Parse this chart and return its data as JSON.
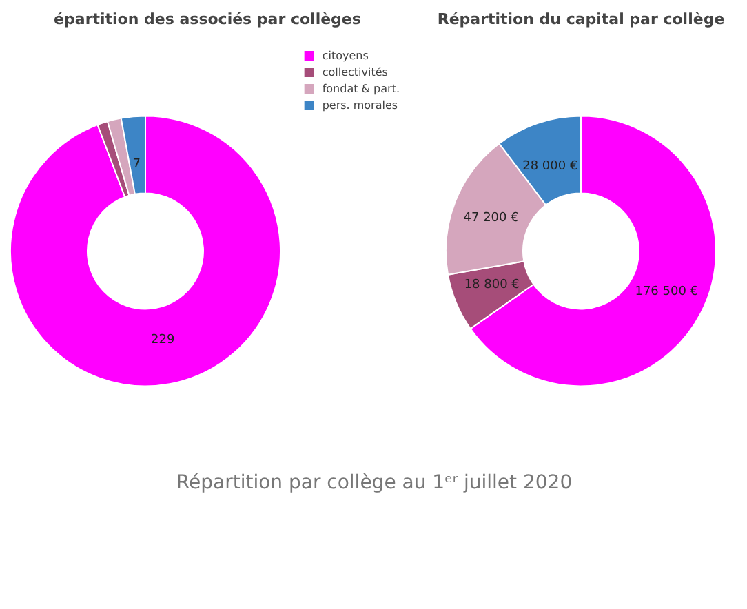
{
  "chart_data": [
    {
      "type": "donut",
      "title": "épartition des associés par collèges",
      "categories": [
        "citoyens",
        "collectivités",
        "fondat & part.",
        "pers. morales"
      ],
      "values": [
        229,
        3,
        4,
        7
      ],
      "colors": [
        "#ff00ff",
        "#a64d79",
        "#d5a6bd",
        "#3d85c6"
      ],
      "value_labels": [
        "229",
        null,
        null,
        "7"
      ],
      "legend": "top right"
    },
    {
      "type": "donut",
      "title": "Répartition du capital par collège",
      "categories": [
        null,
        null,
        null,
        null
      ],
      "values": [
        176500,
        18800,
        47200,
        28000
      ],
      "colors": [
        "#ff00ff",
        "#a64d79",
        "#d5a6bd",
        "#3d85c6"
      ],
      "value_labels": [
        "176 500 €",
        "18 800 €",
        "47 200 €",
        "28 000 €"
      ],
      "annotations": [
        "Répartition par collège au 1ᵉʳ juillet 2020"
      ]
    }
  ]
}
